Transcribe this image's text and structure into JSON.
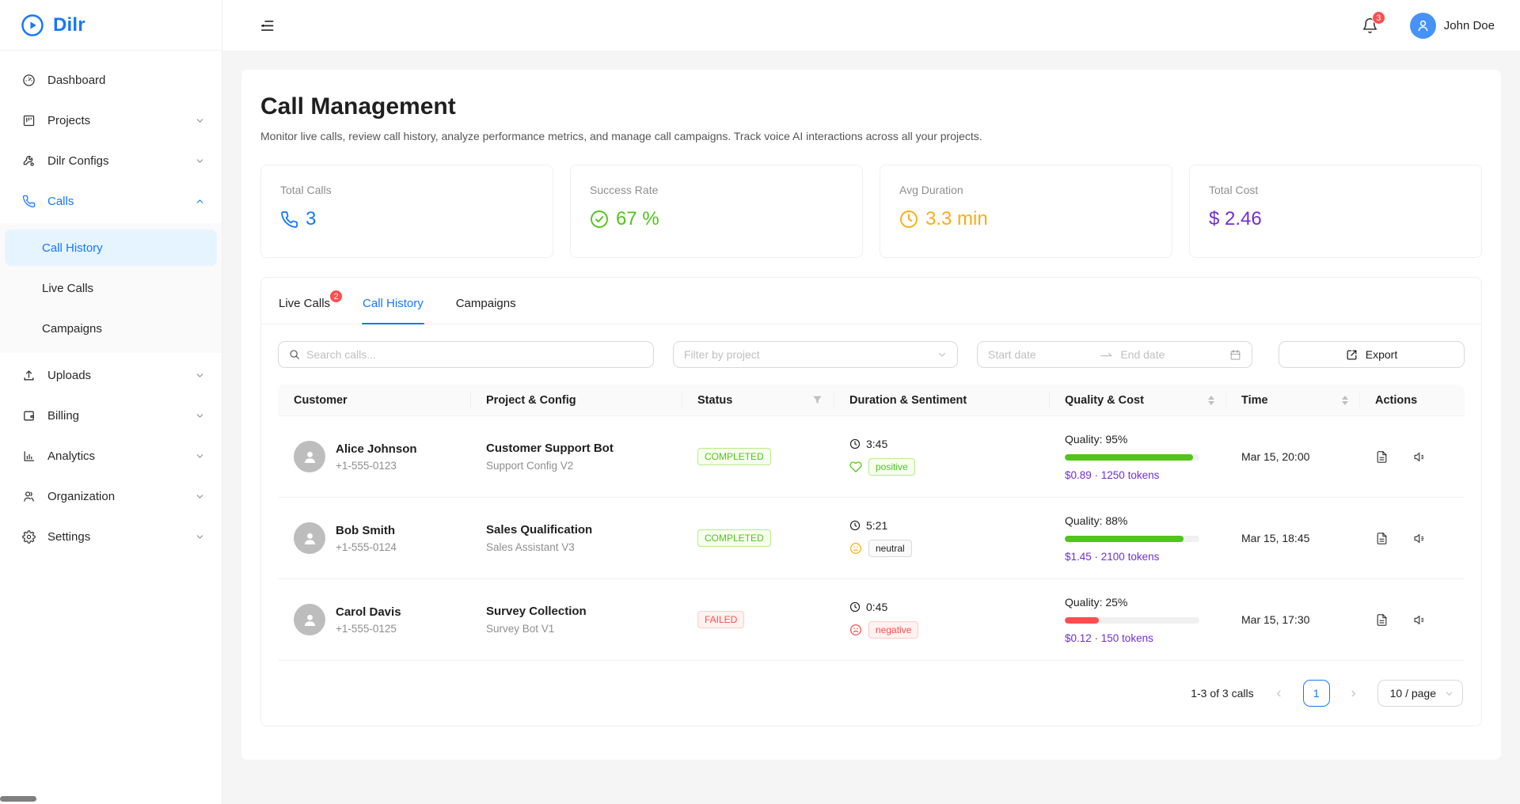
{
  "brand": {
    "name": "Dilr"
  },
  "sidebar": {
    "items": [
      {
        "label": "Dashboard",
        "icon": "dashboard-icon"
      },
      {
        "label": "Projects",
        "icon": "projects-icon"
      },
      {
        "label": "Dilr Configs",
        "icon": "configs-icon"
      },
      {
        "label": "Calls",
        "icon": "calls-icon"
      },
      {
        "label": "Uploads",
        "icon": "uploads-icon"
      },
      {
        "label": "Billing",
        "icon": "billing-icon"
      },
      {
        "label": "Analytics",
        "icon": "analytics-icon"
      },
      {
        "label": "Organization",
        "icon": "organization-icon"
      },
      {
        "label": "Settings",
        "icon": "settings-icon"
      }
    ],
    "calls_submenu": [
      {
        "label": "Call History",
        "active": true
      },
      {
        "label": "Live Calls"
      },
      {
        "label": "Campaigns"
      }
    ]
  },
  "header": {
    "notification_count": "3",
    "user_name": "John Doe"
  },
  "page": {
    "title": "Call Management",
    "description": "Monitor live calls, review call history, analyze performance metrics, and manage call campaigns. Track voice AI interactions across all your projects."
  },
  "stats": [
    {
      "label": "Total Calls",
      "value": "3",
      "color": "#1677ff",
      "icon": "phone-icon"
    },
    {
      "label": "Success Rate",
      "value": "67 %",
      "color": "#52c41a",
      "icon": "check-circle-icon"
    },
    {
      "label": "Avg Duration",
      "value": "3.3 min",
      "color": "#faad14",
      "icon": "clock-icon"
    },
    {
      "label": "Total Cost",
      "value": "$ 2.46",
      "color": "#722ed1",
      "icon": "none"
    }
  ],
  "tabs": [
    {
      "label": "Live Calls",
      "badge": "2"
    },
    {
      "label": "Call History",
      "active": true
    },
    {
      "label": "Campaigns"
    }
  ],
  "filters": {
    "search_placeholder": "Search calls...",
    "project_placeholder": "Filter by project",
    "start_date_placeholder": "Start date",
    "end_date_placeholder": "End date",
    "export_label": "Export"
  },
  "table": {
    "columns": [
      "Customer",
      "Project & Config",
      "Status",
      "Duration & Sentiment",
      "Quality & Cost",
      "Time",
      "Actions"
    ],
    "rows": [
      {
        "name": "Alice Johnson",
        "phone": "+1-555-0123",
        "project": "Customer Support Bot",
        "config": "Support Config V2",
        "status": "COMPLETED",
        "duration": "3:45",
        "sentiment": "positive",
        "quality_label": "Quality: 95%",
        "quality_percent": 95,
        "bar_color": "#52c41a",
        "cost": "$0.89 · 1250 tokens",
        "time": "Mar 15, 20:00"
      },
      {
        "name": "Bob Smith",
        "phone": "+1-555-0124",
        "project": "Sales Qualification",
        "config": "Sales Assistant V3",
        "status": "COMPLETED",
        "duration": "5:21",
        "sentiment": "neutral",
        "quality_label": "Quality: 88%",
        "quality_percent": 88,
        "bar_color": "#52c41a",
        "cost": "$1.45 · 2100 tokens",
        "time": "Mar 15, 18:45"
      },
      {
        "name": "Carol Davis",
        "phone": "+1-555-0125",
        "project": "Survey Collection",
        "config": "Survey Bot V1",
        "status": "FAILED",
        "duration": "0:45",
        "sentiment": "negative",
        "quality_label": "Quality: 25%",
        "quality_percent": 25,
        "bar_color": "#ff4d4f",
        "cost": "$0.12 · 150 tokens",
        "time": "Mar 15, 17:30"
      }
    ]
  },
  "pagination": {
    "total_text": "1-3 of 3 calls",
    "page": "1",
    "page_size": "10 / page"
  }
}
